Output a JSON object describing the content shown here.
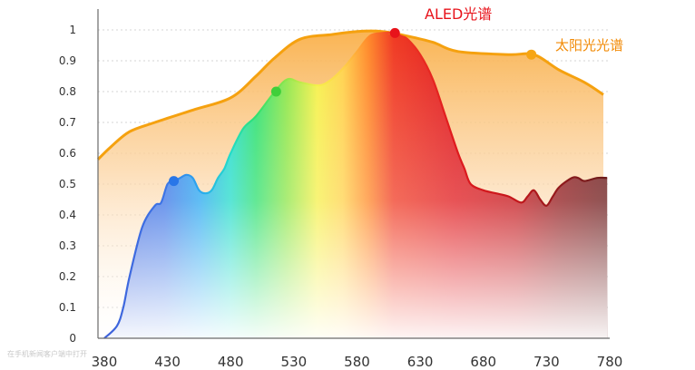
{
  "chart_data": {
    "type": "area",
    "xlim": [
      375,
      780
    ],
    "ylim": [
      0,
      1
    ],
    "x_ticks": [
      "380",
      "430",
      "480",
      "530",
      "580",
      "630",
      "680",
      "730",
      "780"
    ],
    "y_ticks": [
      "0",
      "0.1",
      "0.2",
      "0.3",
      "0.4",
      "0.5",
      "0.6",
      "0.7",
      "0.8",
      "0.9",
      "1"
    ],
    "grid": "horizontal-dotted",
    "series": [
      {
        "name": "太阳光光谱",
        "color": "#f5a10f",
        "x": [
          375,
          385,
          400,
          420,
          450,
          480,
          500,
          515,
          535,
          560,
          580,
          600,
          620,
          640,
          660,
          700,
          720,
          740,
          760,
          775
        ],
        "values": [
          0.58,
          0.62,
          0.67,
          0.7,
          0.74,
          0.78,
          0.85,
          0.91,
          0.97,
          0.985,
          0.995,
          0.995,
          0.98,
          0.96,
          0.93,
          0.92,
          0.92,
          0.87,
          0.83,
          0.79
        ]
      },
      {
        "name": "ALED光谱",
        "color": "#d0121a",
        "x": [
          380,
          390,
          395,
          400,
          410,
          420,
          425,
          430,
          435,
          440,
          445,
          450,
          455,
          460,
          465,
          470,
          475,
          480,
          490,
          500,
          515,
          525,
          535,
          550,
          560,
          570,
          580,
          590,
          600,
          610,
          615,
          620,
          630,
          640,
          650,
          660,
          665,
          670,
          680,
          690,
          700,
          710,
          715,
          720,
          725,
          730,
          735,
          740,
          750,
          755,
          760,
          770,
          778
        ],
        "values": [
          0.0,
          0.04,
          0.1,
          0.2,
          0.36,
          0.43,
          0.44,
          0.5,
          0.51,
          0.52,
          0.53,
          0.52,
          0.48,
          0.47,
          0.48,
          0.52,
          0.55,
          0.6,
          0.68,
          0.72,
          0.8,
          0.84,
          0.83,
          0.82,
          0.84,
          0.88,
          0.93,
          0.98,
          0.99,
          0.99,
          0.98,
          0.97,
          0.92,
          0.84,
          0.72,
          0.6,
          0.55,
          0.5,
          0.48,
          0.47,
          0.46,
          0.44,
          0.46,
          0.48,
          0.45,
          0.43,
          0.46,
          0.49,
          0.52,
          0.52,
          0.51,
          0.52,
          0.52
        ]
      }
    ],
    "markers": [
      {
        "series": "ALED光谱",
        "x": 435,
        "y": 0.51,
        "color": "#2876e8"
      },
      {
        "series": "ALED光谱",
        "x": 516,
        "y": 0.8,
        "color": "#3fcf3a"
      },
      {
        "series": "ALED光谱",
        "x": 610,
        "y": 0.99,
        "color": "#e8131b"
      },
      {
        "series": "太阳光光谱",
        "x": 718,
        "y": 0.92,
        "color": "#f6a514"
      }
    ]
  },
  "watermark": "在手机新闻客户端中打开"
}
